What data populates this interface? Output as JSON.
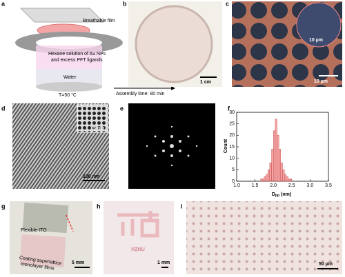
{
  "panels": {
    "a": {
      "letter": "a",
      "film": "Breathable film",
      "solution_1": "Hexane solution of Au NPs",
      "solution_2": "and excess PFT ligands",
      "water": "Water",
      "temperature": "T=50 °C",
      "time": "Assembly time: 80 min"
    },
    "b": {
      "letter": "b",
      "scale": "1 cm"
    },
    "c": {
      "letter": "c",
      "inset_scale": "10 µm",
      "scale": "10 µm"
    },
    "d": {
      "letter": "d",
      "inset_scale": "5 nm",
      "scale": "100 nm"
    },
    "e": {
      "letter": "e"
    },
    "f": {
      "letter": "f",
      "chart": {
        "type": "histogram",
        "ylabel": "Count",
        "xlabel": {
          "main": "D",
          "sub": "pp",
          "unit": "(nm)"
        },
        "bins": [
          1.65,
          1.7,
          1.75,
          1.8,
          1.85,
          1.9,
          1.95,
          2.0,
          2.05,
          2.1,
          2.15,
          2.2,
          2.25,
          2.3,
          2.35,
          2.4,
          2.45,
          2.5
        ],
        "counts": [
          1,
          1,
          2,
          3,
          5,
          8,
          14,
          22,
          27,
          20,
          14,
          8,
          5,
          3,
          2,
          1,
          1
        ],
        "color": "#f08080",
        "xlim": [
          1.0,
          3.5
        ],
        "ylim": [
          0,
          30
        ],
        "xticks": [
          {
            "value": 1.0,
            "label": "1.0"
          },
          {
            "value": 1.5,
            "label": "1.5"
          },
          {
            "value": 2.0,
            "label": "2.0"
          },
          {
            "value": 2.5,
            "label": "2.5"
          },
          {
            "value": 3.0,
            "label": "3.0"
          },
          {
            "value": 3.5,
            "label": "3.5"
          }
        ],
        "yticks": [
          0,
          5,
          10,
          15,
          20,
          25,
          30
        ]
      }
    },
    "g": {
      "letter": "g",
      "ito": "Flexible ITO",
      "coating_1": "Coating superlattice",
      "coating_2": "monolayer films",
      "scale": "5 mm"
    },
    "h": {
      "letter": "h",
      "word": "HZNU",
      "scale": "1 mm"
    },
    "i": {
      "letter": "i",
      "scale": "50 µm"
    }
  }
}
